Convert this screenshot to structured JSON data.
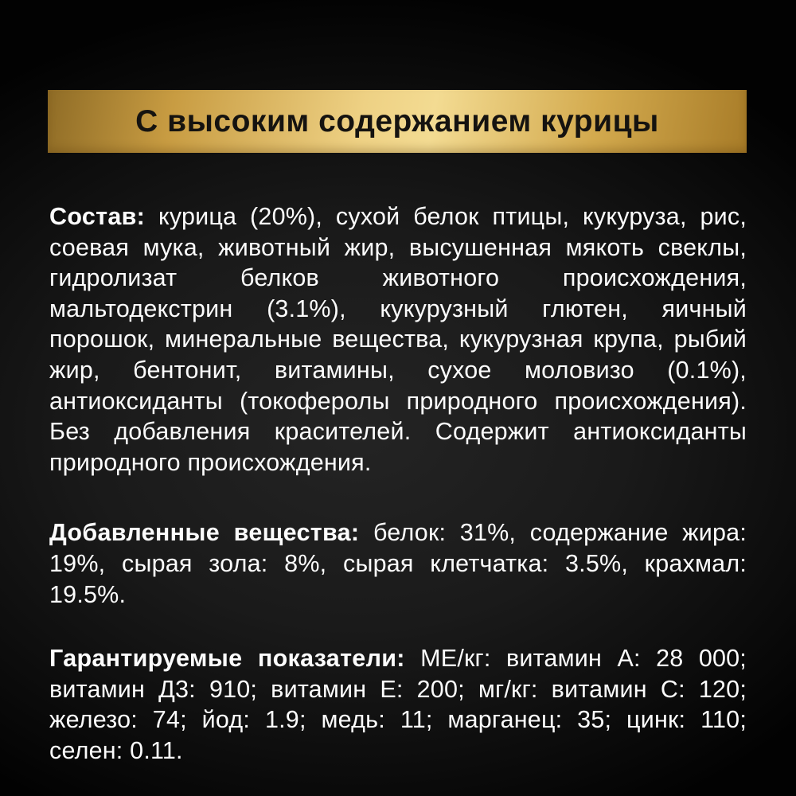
{
  "banner": {
    "label": "С высоким содержанием курицы"
  },
  "paragraphs": {
    "composition": {
      "heading": "Состав:",
      "text": " курица (20%), сухой белок птицы, кукуруза, рис, соевая мука, животный жир, высушенная мякоть свеклы, гидролизат белков животного происхождения, мальтодекстрин (3.1%), кукурузный глютен, яичный порошок, минеральные вещества, кукурузная крупа, рыбий жир, бентонит, витамины, сухое моловизо (0.1%), антиоксиданты (токоферолы природного происхождения). Без добавления красителей. Содержит антиоксиданты природного происхождения."
    },
    "additives": {
      "heading": "Добавленные вещества:",
      "text": " белок: 31%, содержание жира: 19%, сырая зола: 8%, сырая клетчатка: 3.5%, крахмал: 19.5%."
    },
    "guaranteed": {
      "heading": "Гарантируемые показатели:",
      "text": " МЕ/кг: витамин А: 28 000; витамин Д3: 910; витамин Е: 200; мг/кг: витамин С: 120; железо: 74; йод: 1.9; медь: 11; марганец: 35; цинк: 110; селен: 0.11."
    }
  },
  "colors": {
    "background_center": "#242424",
    "background_edge": "#020202",
    "gold_light": "#f3db92",
    "gold_dark": "#8f6c26",
    "banner_text": "#151310",
    "body_text": "#fcfcfc"
  }
}
